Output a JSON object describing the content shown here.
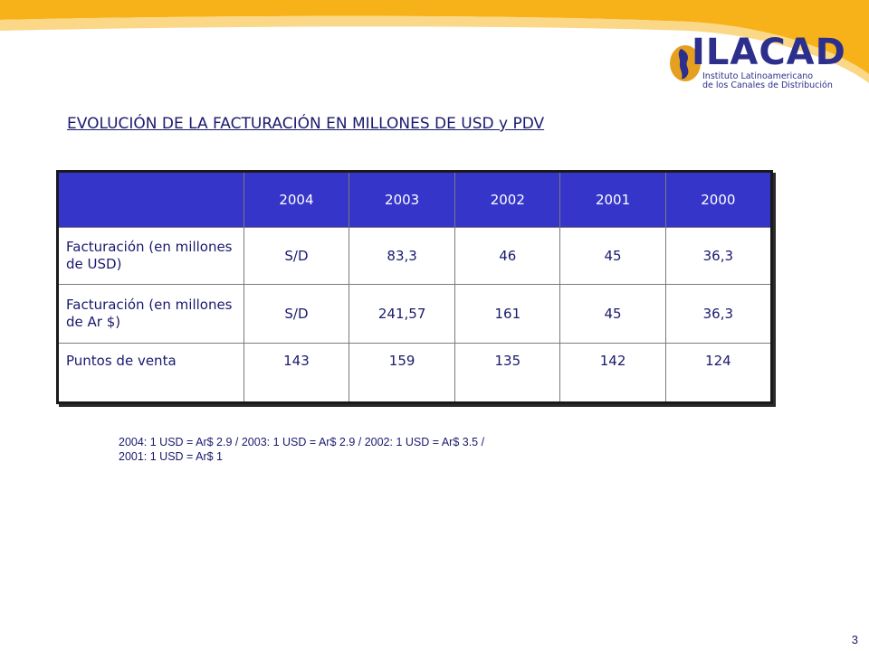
{
  "slide": {
    "title": "EVOLUCIÓN DE LA FACTURACIÓN EN MILLONES DE USD y PDV",
    "page_number": "3"
  },
  "logo": {
    "name": "ILACAD",
    "tagline_1": "Instituto Latinoamericano",
    "tagline_2": "de los Canales de Distribución"
  },
  "table": {
    "corner": "",
    "headers": [
      "2004",
      "2003",
      "2002",
      "2001",
      "2000"
    ],
    "rows": [
      {
        "label": "Facturación (en millones de USD)",
        "values": [
          "S/D",
          "83,3",
          "46",
          "45",
          "36,3"
        ]
      },
      {
        "label": "Facturación (en millones de Ar $)",
        "values": [
          "S/D",
          "241,57",
          "161",
          "45",
          "36,3"
        ]
      },
      {
        "label": "Puntos de venta",
        "values": [
          "143",
          "159",
          "135",
          "142",
          "124"
        ]
      }
    ]
  },
  "note": {
    "line_1": "2004: 1 USD = Ar$ 2.9 / 2003: 1 USD = Ar$ 2.9  / 2002: 1 USD = Ar$ 3.5 /",
    "line_2": "2001: 1 USD = Ar$ 1"
  },
  "colors": {
    "header_fill": "#3535c9",
    "text": "#1a1a6e",
    "swoosh": "#f7b21a"
  }
}
